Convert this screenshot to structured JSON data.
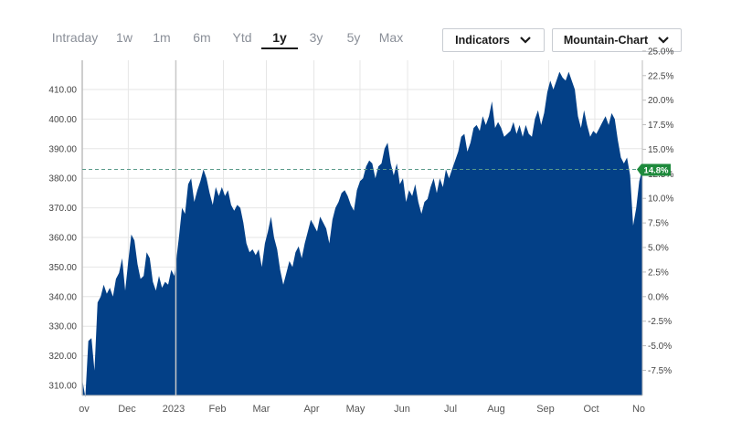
{
  "toolbar": {
    "ranges": [
      "Intraday",
      "1w",
      "1m",
      "6m",
      "Ytd",
      "1y",
      "3y",
      "5y",
      "Max"
    ],
    "active_range": "1y",
    "indicators_label": "Indicators",
    "chart_type_label": "Mountain-Chart"
  },
  "colors": {
    "area": "#034087",
    "badge": "#1e8a3c",
    "reference_line": "#5a9a8a",
    "grid": "#e6e6e6"
  },
  "chart_data": {
    "type": "area",
    "x_ticks": [
      "ov",
      "Dec",
      "2023",
      "Feb",
      "Mar",
      "Apr",
      "May",
      "Jun",
      "Jul",
      "Aug",
      "Sep",
      "Oct",
      "No"
    ],
    "y_left_ticks": [
      "310.00",
      "320.00",
      "330.00",
      "340.00",
      "350.00",
      "360.00",
      "370.00",
      "380.00",
      "390.00",
      "400.00",
      "410.00"
    ],
    "y_right_ticks": [
      "-7.5%",
      "-5.0%",
      "-2.5%",
      "0.0%",
      "2.5%",
      "5.0%",
      "7.5%",
      "10.0%",
      "12.5%",
      "15.0%",
      "17.5%",
      "20.0%",
      "22.5%",
      "25.0%"
    ],
    "ylim": [
      306,
      414
    ],
    "reference_value": 383,
    "current_change": "14.8%",
    "grid": true,
    "series": [
      {
        "points": [
          [
            "2022-11-01",
            312
          ],
          [
            "2022-11-03",
            306
          ],
          [
            "2022-11-05",
            325
          ],
          [
            "2022-11-07",
            326
          ],
          [
            "2022-11-09",
            315
          ],
          [
            "2022-11-11",
            338
          ],
          [
            "2022-11-13",
            340
          ],
          [
            "2022-11-15",
            344
          ],
          [
            "2022-11-17",
            341
          ],
          [
            "2022-11-19",
            343
          ],
          [
            "2022-11-21",
            340
          ],
          [
            "2022-11-23",
            346
          ],
          [
            "2022-11-25",
            348
          ],
          [
            "2022-11-27",
            353
          ],
          [
            "2022-11-29",
            342
          ],
          [
            "2022-12-01",
            352
          ],
          [
            "2022-12-03",
            361
          ],
          [
            "2022-12-05",
            359
          ],
          [
            "2022-12-07",
            351
          ],
          [
            "2022-12-09",
            346
          ],
          [
            "2022-12-11",
            347
          ],
          [
            "2022-12-13",
            355
          ],
          [
            "2022-12-15",
            353
          ],
          [
            "2022-12-17",
            345
          ],
          [
            "2022-12-19",
            342
          ],
          [
            "2022-12-21",
            347
          ],
          [
            "2022-12-23",
            343
          ],
          [
            "2022-12-25",
            345
          ],
          [
            "2022-12-27",
            344
          ],
          [
            "2022-12-29",
            349
          ],
          [
            "2022-12-31",
            347
          ],
          [
            "2023-01-03",
            360
          ],
          [
            "2023-01-05",
            370
          ],
          [
            "2023-01-07",
            368
          ],
          [
            "2023-01-09",
            378
          ],
          [
            "2023-01-11",
            380
          ],
          [
            "2023-01-13",
            372
          ],
          [
            "2023-01-15",
            376
          ],
          [
            "2023-01-17",
            379
          ],
          [
            "2023-01-19",
            383
          ],
          [
            "2023-01-21",
            380
          ],
          [
            "2023-01-23",
            375
          ],
          [
            "2023-01-25",
            371
          ],
          [
            "2023-01-27",
            377
          ],
          [
            "2023-01-29",
            374
          ],
          [
            "2023-01-31",
            377
          ],
          [
            "2023-02-02",
            374
          ],
          [
            "2023-02-04",
            376
          ],
          [
            "2023-02-06",
            371
          ],
          [
            "2023-02-08",
            369
          ],
          [
            "2023-02-10",
            371
          ],
          [
            "2023-02-12",
            370
          ],
          [
            "2023-02-14",
            365
          ],
          [
            "2023-02-16",
            358
          ],
          [
            "2023-02-18",
            355
          ],
          [
            "2023-02-20",
            356
          ],
          [
            "2023-02-22",
            354
          ],
          [
            "2023-02-24",
            356
          ],
          [
            "2023-02-26",
            350
          ],
          [
            "2023-02-28",
            358
          ],
          [
            "2023-03-02",
            362
          ],
          [
            "2023-03-04",
            367
          ],
          [
            "2023-03-06",
            360
          ],
          [
            "2023-03-08",
            356
          ],
          [
            "2023-03-10",
            349
          ],
          [
            "2023-03-12",
            344
          ],
          [
            "2023-03-14",
            348
          ],
          [
            "2023-03-16",
            352
          ],
          [
            "2023-03-18",
            350
          ],
          [
            "2023-03-20",
            355
          ],
          [
            "2023-03-22",
            357
          ],
          [
            "2023-03-24",
            353
          ],
          [
            "2023-03-26",
            358
          ],
          [
            "2023-03-28",
            362
          ],
          [
            "2023-03-30",
            366
          ],
          [
            "2023-04-01",
            364
          ],
          [
            "2023-04-03",
            362
          ],
          [
            "2023-04-05",
            367
          ],
          [
            "2023-04-07",
            365
          ],
          [
            "2023-04-09",
            363
          ],
          [
            "2023-04-11",
            358
          ],
          [
            "2023-04-13",
            366
          ],
          [
            "2023-04-15",
            370
          ],
          [
            "2023-04-17",
            372
          ],
          [
            "2023-04-19",
            375
          ],
          [
            "2023-04-21",
            376
          ],
          [
            "2023-04-23",
            374
          ],
          [
            "2023-04-25",
            371
          ],
          [
            "2023-04-27",
            369
          ],
          [
            "2023-04-29",
            376
          ],
          [
            "2023-05-01",
            379
          ],
          [
            "2023-05-03",
            380
          ],
          [
            "2023-05-05",
            384
          ],
          [
            "2023-05-07",
            386
          ],
          [
            "2023-05-09",
            385
          ],
          [
            "2023-05-11",
            380
          ],
          [
            "2023-05-13",
            384
          ],
          [
            "2023-05-15",
            385
          ],
          [
            "2023-05-17",
            390
          ],
          [
            "2023-05-19",
            392
          ],
          [
            "2023-05-21",
            385
          ],
          [
            "2023-05-23",
            381
          ],
          [
            "2023-05-25",
            385
          ],
          [
            "2023-05-27",
            378
          ],
          [
            "2023-05-29",
            380
          ],
          [
            "2023-05-31",
            372
          ],
          [
            "2023-06-02",
            376
          ],
          [
            "2023-06-04",
            374
          ],
          [
            "2023-06-06",
            378
          ],
          [
            "2023-06-08",
            372
          ],
          [
            "2023-06-10",
            368
          ],
          [
            "2023-06-12",
            372
          ],
          [
            "2023-06-14",
            373
          ],
          [
            "2023-06-16",
            377
          ],
          [
            "2023-06-18",
            380
          ],
          [
            "2023-06-20",
            375
          ],
          [
            "2023-06-22",
            380
          ],
          [
            "2023-06-24",
            377
          ],
          [
            "2023-06-26",
            383
          ],
          [
            "2023-06-28",
            380
          ],
          [
            "2023-06-30",
            383
          ],
          [
            "2023-07-02",
            386
          ],
          [
            "2023-07-04",
            389
          ],
          [
            "2023-07-06",
            394
          ],
          [
            "2023-07-08",
            395
          ],
          [
            "2023-07-10",
            389
          ],
          [
            "2023-07-12",
            392
          ],
          [
            "2023-07-14",
            397
          ],
          [
            "2023-07-16",
            398
          ],
          [
            "2023-07-18",
            396
          ],
          [
            "2023-07-20",
            401
          ],
          [
            "2023-07-22",
            398
          ],
          [
            "2023-07-24",
            401
          ],
          [
            "2023-07-26",
            406
          ],
          [
            "2023-07-28",
            397
          ],
          [
            "2023-07-30",
            399
          ],
          [
            "2023-08-01",
            397
          ],
          [
            "2023-08-03",
            394
          ],
          [
            "2023-08-05",
            395
          ],
          [
            "2023-08-07",
            396
          ],
          [
            "2023-08-09",
            399
          ],
          [
            "2023-08-11",
            395
          ],
          [
            "2023-08-13",
            398
          ],
          [
            "2023-08-15",
            394
          ],
          [
            "2023-08-17",
            398
          ],
          [
            "2023-08-19",
            395
          ],
          [
            "2023-08-21",
            394
          ],
          [
            "2023-08-23",
            400
          ],
          [
            "2023-08-25",
            403
          ],
          [
            "2023-08-27",
            398
          ],
          [
            "2023-08-29",
            402
          ],
          [
            "2023-08-31",
            409
          ],
          [
            "2023-09-02",
            413
          ],
          [
            "2023-09-04",
            410
          ],
          [
            "2023-09-06",
            413
          ],
          [
            "2023-09-08",
            416
          ],
          [
            "2023-09-10",
            414
          ],
          [
            "2023-09-12",
            413
          ],
          [
            "2023-09-14",
            416
          ],
          [
            "2023-09-16",
            413
          ],
          [
            "2023-09-18",
            410
          ],
          [
            "2023-09-20",
            401
          ],
          [
            "2023-09-22",
            397
          ],
          [
            "2023-09-24",
            403
          ],
          [
            "2023-09-26",
            398
          ],
          [
            "2023-09-28",
            394
          ],
          [
            "2023-09-30",
            396
          ],
          [
            "2023-10-02",
            395
          ],
          [
            "2023-10-04",
            397
          ],
          [
            "2023-10-06",
            399
          ],
          [
            "2023-10-08",
            401
          ],
          [
            "2023-10-10",
            398
          ],
          [
            "2023-10-12",
            402
          ],
          [
            "2023-10-14",
            400
          ],
          [
            "2023-10-16",
            393
          ],
          [
            "2023-10-18",
            387
          ],
          [
            "2023-10-20",
            385
          ],
          [
            "2023-10-22",
            387
          ],
          [
            "2023-10-24",
            381
          ],
          [
            "2023-10-26",
            364
          ],
          [
            "2023-10-28",
            370
          ],
          [
            "2023-10-30",
            379
          ],
          [
            "2023-11-01",
            383
          ]
        ]
      }
    ]
  }
}
